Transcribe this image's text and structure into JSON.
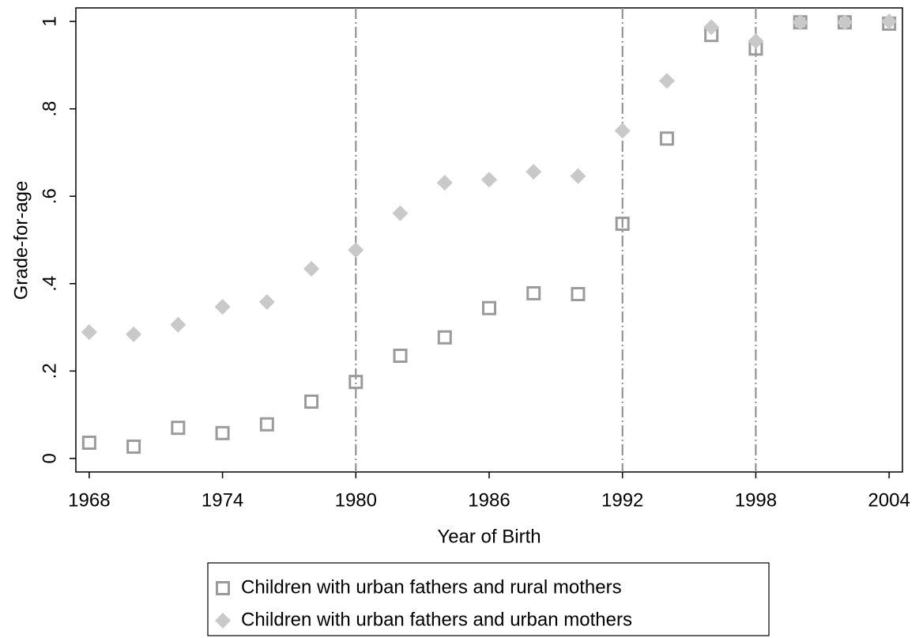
{
  "chart_data": {
    "type": "scatter",
    "x_label": "Year of Birth",
    "y_label": "Grade-for-age",
    "x": [
      1968,
      1970,
      1972,
      1974,
      1976,
      1978,
      1980,
      1982,
      1984,
      1986,
      1988,
      1990,
      1992,
      1994,
      1996,
      1998,
      2000,
      2002,
      2004
    ],
    "series": [
      {
        "name": "Children with urban fathers and rural mothers",
        "color": "#9b9b9b",
        "marker": "hollow-square",
        "values": [
          0.036,
          0.027,
          0.07,
          0.058,
          0.078,
          0.13,
          0.175,
          0.235,
          0.277,
          0.344,
          0.378,
          0.376,
          0.537,
          0.732,
          0.969,
          0.938,
          0.998,
          0.998,
          0.995
        ]
      },
      {
        "name": "Children with urban fathers and urban mothers",
        "color": "#c9c9c9",
        "marker": "diamond",
        "values": [
          0.289,
          0.284,
          0.306,
          0.347,
          0.358,
          0.434,
          0.477,
          0.561,
          0.631,
          0.638,
          0.656,
          0.646,
          0.75,
          0.864,
          0.987,
          0.955,
          0.998,
          0.998,
          1.0
        ]
      }
    ],
    "xlim": [
      1967.4,
      2004.6
    ],
    "ylim": [
      -0.031,
      1.031
    ],
    "xticks": [
      1968,
      1974,
      1980,
      1986,
      1992,
      1998,
      2004
    ],
    "yticks": [
      0,
      {
        "value": 0.2,
        "label": ".2"
      },
      {
        "value": 0.4,
        "label": ".4"
      },
      {
        "value": 0.6,
        "label": ".6"
      },
      {
        "value": 0.8,
        "label": ".8"
      },
      1
    ],
    "xlines": [
      1980,
      1992,
      1998
    ],
    "xline_color": "#8a8a8a"
  }
}
